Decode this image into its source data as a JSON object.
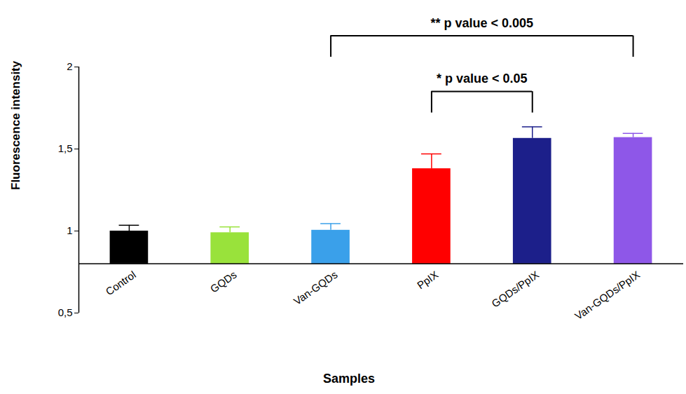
{
  "chart_data": {
    "type": "bar",
    "categories": [
      "Control",
      "GQDs",
      "Van-GQDs",
      "PpIX",
      "GQDs/PpIX",
      "Van-GQDs/PpIX"
    ],
    "values": [
      1.0,
      0.99,
      1.005,
      1.38,
      1.565,
      1.57
    ],
    "errors": [
      0.035,
      0.035,
      0.04,
      0.09,
      0.07,
      0.025
    ],
    "colors": [
      "#000000",
      "#99e23b",
      "#3aa0ea",
      "#ff0000",
      "#1c1f8a",
      "#8e57e8"
    ],
    "x_label": "Samples",
    "y_label": "Fluorescence intensity",
    "ylim": [
      0.5,
      2
    ],
    "yticks": [
      {
        "value": 0.5,
        "label": "0,5"
      },
      1,
      {
        "value": 1.5,
        "label": "1,5"
      },
      2
    ],
    "baseline": 0.8,
    "annotations": [
      {
        "text": "** p value < 0.005",
        "from": "Van-GQDs",
        "to": "Van-GQDs/PpIX"
      },
      {
        "text": "* p value < 0.05",
        "from": "PpIX",
        "to": "GQDs/PpIX"
      }
    ]
  }
}
